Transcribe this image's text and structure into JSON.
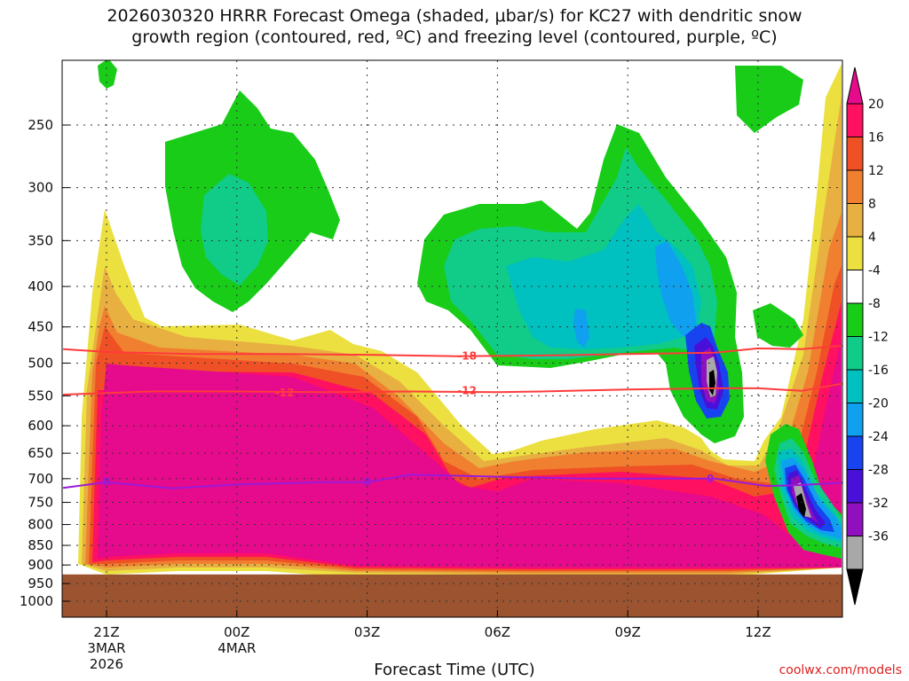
{
  "chart_data": {
    "type": "heatmap",
    "title_line1": "2026030320 HRRR Forecast Omega (shaded, μbar/s) for KC27 with dendritic snow",
    "title_line2": "growth region (contoured, red, ºC) and freezing level (contoured, purple, ºC)",
    "xlabel": "Forecast Time (UTC)",
    "credit": "coolwx.com/models",
    "y_axis": {
      "scale": "log-pressure",
      "ticks": [
        250,
        300,
        350,
        400,
        450,
        500,
        550,
        600,
        650,
        700,
        750,
        800,
        850,
        900,
        950,
        1000
      ],
      "range": [
        200,
        1050
      ]
    },
    "x_axis": {
      "range_hours": [
        -1,
        17
      ],
      "ticks": [
        {
          "hour": 0,
          "label": "21Z",
          "sub1": "3MAR",
          "sub2": "2026"
        },
        {
          "hour": 3,
          "label": "00Z",
          "sub1": "4MAR",
          "sub2": ""
        },
        {
          "hour": 6,
          "label": "03Z",
          "sub1": "",
          "sub2": ""
        },
        {
          "hour": 9,
          "label": "06Z",
          "sub1": "",
          "sub2": ""
        },
        {
          "hour": 12,
          "label": "09Z",
          "sub1": "",
          "sub2": ""
        },
        {
          "hour": 15,
          "label": "12Z",
          "sub1": "",
          "sub2": ""
        }
      ]
    },
    "grid": true,
    "colorbar": {
      "labels": [
        "20",
        "16",
        "12",
        "8",
        "4",
        "-4",
        "-8",
        "-12",
        "-16",
        "-20",
        "-24",
        "-28",
        "-32",
        "-36"
      ],
      "colors": [
        "#ff1060",
        "#f05025",
        "#f08030",
        "#e8b040",
        "#ece040",
        "#ffffff",
        "#18cc18",
        "#10cc88",
        "#00c0c0",
        "#10a0f0",
        "#1844f0",
        "#4810d8",
        "#9010c0",
        "#a8a8a8"
      ],
      "top_color": "#e60a8c",
      "bottom_color": "#000000"
    },
    "ground_pressure": 925,
    "contours": [
      {
        "name": "-18",
        "color": "#ff3b3b",
        "points": [
          [
            -1,
            480
          ],
          [
            0,
            484
          ],
          [
            2,
            487
          ],
          [
            4,
            487
          ],
          [
            6,
            488
          ],
          [
            8,
            490
          ],
          [
            10,
            489
          ],
          [
            12,
            487
          ],
          [
            14,
            485
          ],
          [
            15,
            479
          ],
          [
            16,
            480
          ],
          [
            17,
            475
          ]
        ],
        "labels": [
          [
            8.3,
            490
          ]
        ]
      },
      {
        "name": "-12",
        "color": "#ff3b3b",
        "points": [
          [
            -1,
            548
          ],
          [
            1,
            543
          ],
          [
            3,
            543
          ],
          [
            5,
            544
          ],
          [
            7,
            543
          ],
          [
            9,
            544
          ],
          [
            10,
            543
          ],
          [
            12,
            540
          ],
          [
            14,
            538
          ],
          [
            15,
            538
          ],
          [
            16,
            542
          ],
          [
            17,
            530
          ]
        ],
        "labels": [
          [
            4.1,
            545
          ],
          [
            8.3,
            542
          ]
        ]
      },
      {
        "name": "0",
        "color": "#9a1ad8",
        "points": [
          [
            -1,
            719
          ],
          [
            0,
            707
          ],
          [
            1.5,
            720
          ],
          [
            3,
            712
          ],
          [
            5,
            707
          ],
          [
            6,
            707
          ],
          [
            7,
            692
          ],
          [
            9,
            696
          ],
          [
            11,
            700
          ],
          [
            13,
            700
          ],
          [
            14,
            700
          ],
          [
            15.2,
            715
          ],
          [
            16,
            713
          ],
          [
            17,
            708
          ]
        ],
        "labels": [
          [
            0,
            707
          ],
          [
            6,
            707
          ],
          [
            13.9,
            700
          ]
        ]
      }
    ]
  }
}
